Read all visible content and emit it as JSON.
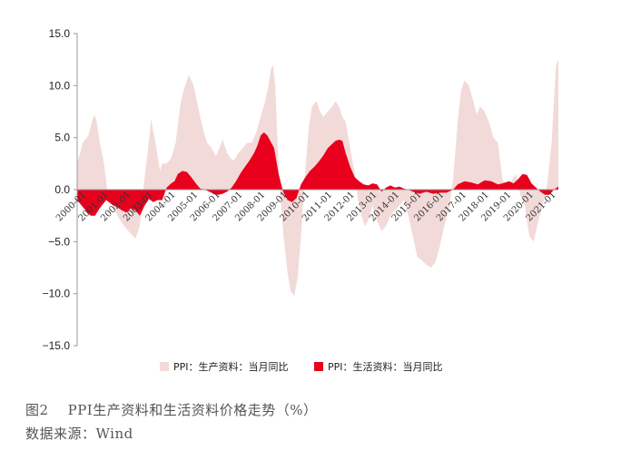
{
  "figure": {
    "caption": "图2    PPI生产资料和生活资料价格走势（%）",
    "source": "数据来源：Wind"
  },
  "chart_data": {
    "type": "area",
    "ylim": [
      -15,
      15
    ],
    "yticks": [
      "15.0",
      "10.0",
      "5.0",
      "0.0",
      "−5.0",
      "−10.0",
      "−15.0"
    ],
    "xrange": [
      2000.0,
      2021.5
    ],
    "xticks": [
      "2000-01",
      "2001-01",
      "2002-01",
      "2003-01",
      "2004-01",
      "2005-01",
      "2006-01",
      "2007-01",
      "2008-01",
      "2009-01",
      "2010-01",
      "2011-01",
      "2012-01",
      "2013-01",
      "2014-01",
      "2015-01",
      "2016-01",
      "2017-01",
      "2018-01",
      "2019-01",
      "2020-01",
      "2021-01"
    ],
    "legend_position": "bottom",
    "colors": {
      "producer": "#f2dad9",
      "consumer": "#e8001c",
      "axis": "#999999"
    },
    "series": [
      {
        "name": "PPI：生产资料：当月同比",
        "x": [
          2000.0,
          2000.25,
          2000.5,
          2000.75,
          2000.85,
          2001.0,
          2001.2,
          2001.4,
          2001.6,
          2001.8,
          2002.0,
          2002.3,
          2002.6,
          2002.8,
          2003.0,
          2003.2,
          2003.3,
          2003.5,
          2003.7,
          2003.8,
          2004.0,
          2004.2,
          2004.4,
          2004.6,
          2004.75,
          2004.9,
          2005.0,
          2005.2,
          2005.4,
          2005.6,
          2005.8,
          2006.0,
          2006.2,
          2006.5,
          2006.7,
          2006.85,
          2007.0,
          2007.2,
          2007.4,
          2007.6,
          2007.8,
          2008.0,
          2008.2,
          2008.4,
          2008.55,
          2008.65,
          2008.75,
          2008.85,
          2009.0,
          2009.2,
          2009.4,
          2009.55,
          2009.7,
          2009.85,
          2010.0,
          2010.2,
          2010.35,
          2010.5,
          2010.7,
          2010.85,
          2011.0,
          2011.2,
          2011.4,
          2011.55,
          2011.7,
          2011.85,
          2012.0,
          2012.2,
          2012.4,
          2012.55,
          2012.7,
          2012.85,
          2013.0,
          2013.2,
          2013.4,
          2013.6,
          2013.8,
          2014.0,
          2014.2,
          2014.4,
          2014.6,
          2014.8,
          2015.0,
          2015.2,
          2015.4,
          2015.6,
          2015.8,
          2016.0,
          2016.2,
          2016.4,
          2016.6,
          2016.8,
          2017.0,
          2017.15,
          2017.3,
          2017.5,
          2017.7,
          2017.85,
          2018.0,
          2018.2,
          2018.4,
          2018.6,
          2018.8,
          2019.0,
          2019.2,
          2019.4,
          2019.6,
          2019.8,
          2020.0,
          2020.2,
          2020.4,
          2020.6,
          2020.8,
          2021.0,
          2021.2,
          2021.3,
          2021.4,
          2021.5
        ],
        "values": [
          2.5,
          4.5,
          5.2,
          7.2,
          6.8,
          4.6,
          2.5,
          -1.0,
          -1.5,
          -2.5,
          -3.2,
          -4.0,
          -4.7,
          -3.5,
          1.0,
          4.5,
          6.8,
          4.5,
          1.8,
          2.5,
          2.5,
          3.0,
          4.5,
          8.0,
          9.5,
          10.5,
          11.0,
          10.0,
          8.0,
          6.0,
          4.5,
          4.0,
          3.2,
          4.8,
          3.5,
          3.0,
          2.8,
          3.5,
          4.0,
          4.5,
          4.5,
          5.5,
          7.0,
          8.5,
          10.0,
          11.5,
          12.0,
          10.0,
          2.0,
          -4.0,
          -8.0,
          -9.8,
          -10.2,
          -8.5,
          -4.5,
          2.0,
          6.0,
          8.0,
          8.5,
          7.5,
          7.0,
          7.5,
          8.0,
          8.5,
          8.0,
          7.0,
          6.5,
          4.0,
          1.5,
          -1.0,
          -2.5,
          -3.5,
          -3.0,
          -1.5,
          -3.0,
          -4.0,
          -3.5,
          -2.5,
          -2.0,
          -1.5,
          -1.0,
          -2.5,
          -4.5,
          -6.5,
          -6.8,
          -7.2,
          -7.5,
          -7.0,
          -5.5,
          -3.5,
          -2.0,
          1.0,
          6.5,
          9.5,
          10.5,
          10.0,
          8.5,
          7.2,
          8.0,
          7.5,
          6.5,
          5.0,
          4.5,
          1.0,
          0.2,
          0.8,
          1.5,
          -0.5,
          -1.5,
          -4.5,
          -5.0,
          -3.0,
          -1.5,
          0.5,
          4.5,
          8.5,
          12.0,
          12.5
        ]
      },
      {
        "name": "PPI：生活资料：当月同比",
        "x": [
          2000.0,
          2000.3,
          2000.6,
          2000.8,
          2001.0,
          2001.3,
          2001.6,
          2001.8,
          2002.0,
          2002.2,
          2002.4,
          2002.6,
          2002.8,
          2003.0,
          2003.2,
          2003.4,
          2003.6,
          2003.8,
          2004.0,
          2004.2,
          2004.35,
          2004.5,
          2004.7,
          2004.9,
          2005.1,
          2005.3,
          2005.5,
          2005.7,
          2005.9,
          2006.1,
          2006.3,
          2006.5,
          2006.7,
          2006.9,
          2007.1,
          2007.3,
          2007.5,
          2007.7,
          2007.9,
          2008.05,
          2008.2,
          2008.35,
          2008.5,
          2008.65,
          2008.8,
          2009.0,
          2009.2,
          2009.4,
          2009.6,
          2009.8,
          2010.0,
          2010.2,
          2010.4,
          2010.6,
          2010.8,
          2011.0,
          2011.2,
          2011.4,
          2011.55,
          2011.7,
          2011.85,
          2012.0,
          2012.2,
          2012.4,
          2012.6,
          2012.8,
          2013.0,
          2013.2,
          2013.4,
          2013.6,
          2013.8,
          2014.0,
          2014.2,
          2014.4,
          2014.6,
          2014.8,
          2015.0,
          2015.3,
          2015.6,
          2015.9,
          2016.2,
          2016.5,
          2016.8,
          2017.0,
          2017.3,
          2017.6,
          2017.9,
          2018.2,
          2018.5,
          2018.8,
          2019.0,
          2019.3,
          2019.5,
          2019.7,
          2019.9,
          2020.1,
          2020.3,
          2020.5,
          2020.7,
          2020.9,
          2021.1,
          2021.3,
          2021.5
        ],
        "values": [
          -1.0,
          -1.8,
          -2.5,
          -2.5,
          -1.8,
          -1.0,
          -1.5,
          -1.7,
          -2.0,
          -2.2,
          -1.8,
          -2.0,
          -2.5,
          -1.6,
          -0.9,
          -1.2,
          -1.0,
          -1.0,
          0.2,
          0.6,
          0.8,
          1.5,
          1.8,
          1.7,
          1.2,
          0.6,
          0.1,
          0.0,
          -0.2,
          -0.4,
          -0.5,
          -0.4,
          -0.2,
          0.2,
          0.8,
          1.6,
          2.2,
          2.8,
          3.5,
          4.2,
          5.2,
          5.5,
          5.2,
          4.6,
          4.0,
          1.5,
          -0.2,
          -1.0,
          -1.2,
          -0.8,
          0.5,
          1.2,
          1.8,
          2.2,
          2.7,
          3.3,
          4.0,
          4.4,
          4.7,
          4.8,
          4.7,
          3.5,
          2.2,
          1.2,
          0.8,
          0.5,
          0.4,
          0.6,
          0.5,
          -0.2,
          0.2,
          0.4,
          0.2,
          0.3,
          0.1,
          0.0,
          -0.2,
          -0.4,
          -0.2,
          -0.4,
          -0.3,
          -0.3,
          0.0,
          0.5,
          0.8,
          0.7,
          0.5,
          0.9,
          0.8,
          0.5,
          0.6,
          0.8,
          0.6,
          1.0,
          1.5,
          1.4,
          0.6,
          0.2,
          -0.2,
          -0.5,
          -0.5,
          0.0,
          0.3
        ]
      }
    ]
  }
}
